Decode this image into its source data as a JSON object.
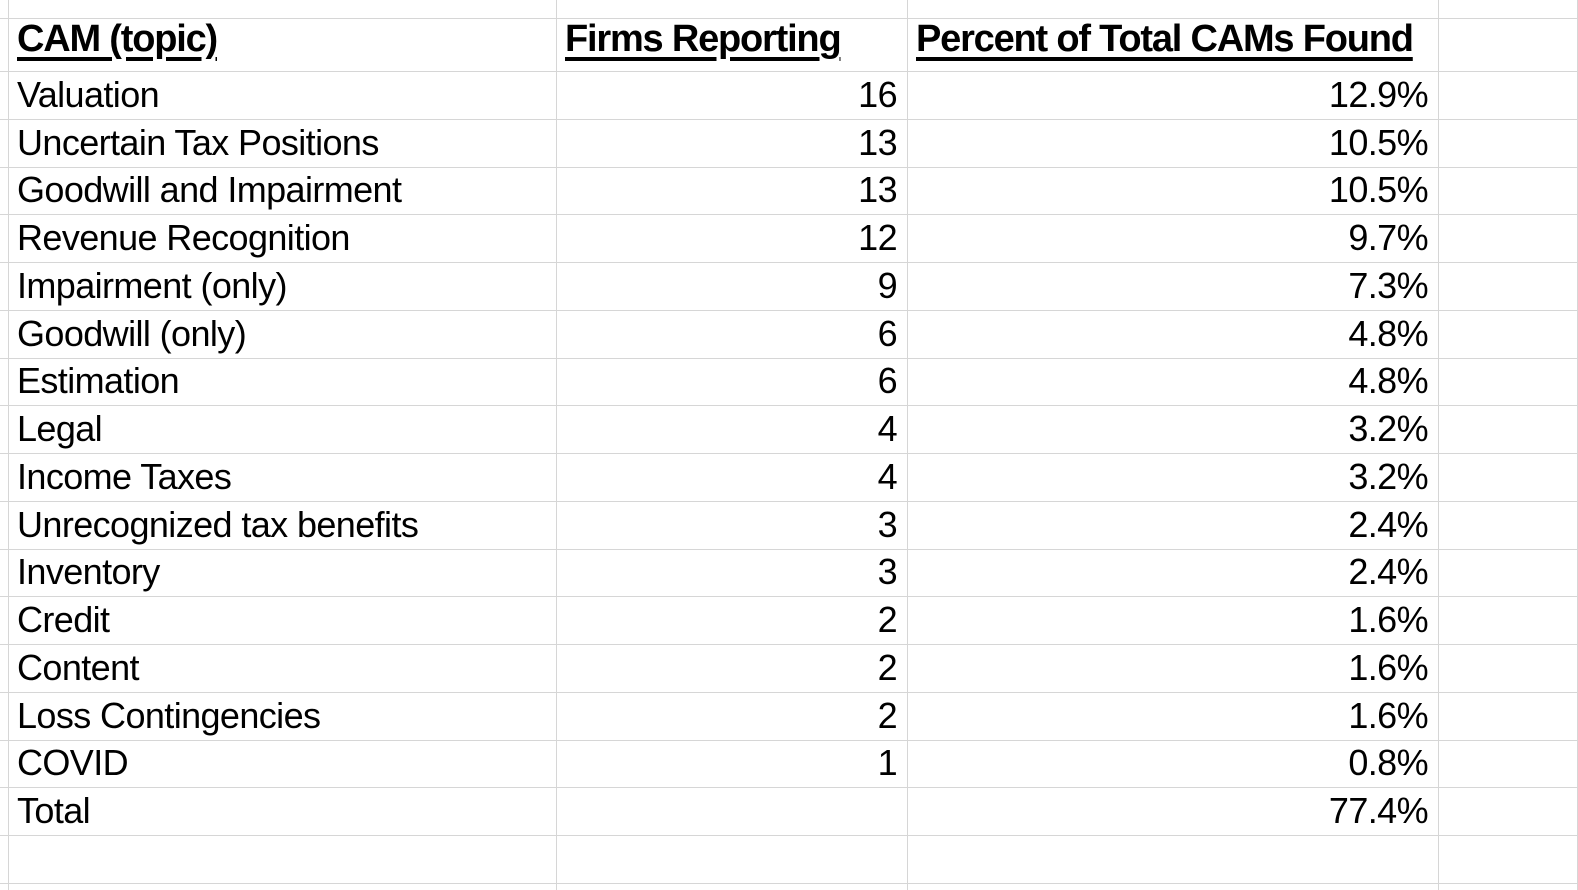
{
  "table": {
    "columns": [
      {
        "label": "CAM (topic)"
      },
      {
        "label": "Firms Reporting"
      },
      {
        "label": "Percent of Total CAMs Found"
      }
    ],
    "rows": [
      {
        "topic": "Valuation",
        "firms": "16",
        "percent": "12.9%"
      },
      {
        "topic": "Uncertain Tax Positions",
        "firms": "13",
        "percent": "10.5%"
      },
      {
        "topic": "Goodwill and Impairment",
        "firms": "13",
        "percent": "10.5%"
      },
      {
        "topic": "Revenue Recognition",
        "firms": "12",
        "percent": "9.7%"
      },
      {
        "topic": "Impairment (only)",
        "firms": "9",
        "percent": "7.3%"
      },
      {
        "topic": "Goodwill (only)",
        "firms": "6",
        "percent": "4.8%"
      },
      {
        "topic": "Estimation",
        "firms": "6",
        "percent": "4.8%"
      },
      {
        "topic": "Legal",
        "firms": "4",
        "percent": "3.2%"
      },
      {
        "topic": "Income Taxes",
        "firms": "4",
        "percent": "3.2%"
      },
      {
        "topic": "Unrecognized tax benefits",
        "firms": "3",
        "percent": "2.4%"
      },
      {
        "topic": "Inventory",
        "firms": "3",
        "percent": "2.4%"
      },
      {
        "topic": "Credit",
        "firms": "2",
        "percent": "1.6%"
      },
      {
        "topic": "Content",
        "firms": "2",
        "percent": "1.6%"
      },
      {
        "topic": "Loss Contingencies",
        "firms": "2",
        "percent": "1.6%"
      },
      {
        "topic": "COVID",
        "firms": "1",
        "percent": "0.8%"
      },
      {
        "topic": "Total",
        "firms": "",
        "percent": "77.4%"
      }
    ]
  },
  "colors": {
    "gridline": "#d6d6d6",
    "text": "#000000",
    "background": "#ffffff"
  }
}
